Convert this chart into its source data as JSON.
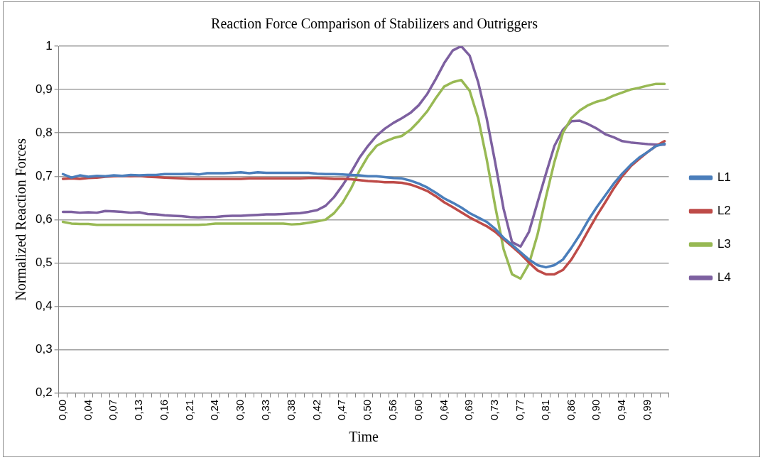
{
  "chart_data": {
    "type": "line",
    "title": "Reaction Force Comparison of Stabilizers and Outriggers",
    "xlabel": "Time",
    "ylabel": "Normalized Reaction Forces",
    "categories": [
      "0,00",
      null,
      null,
      "0,04",
      null,
      null,
      "0,07",
      null,
      null,
      "0,13",
      null,
      null,
      "0,16",
      null,
      null,
      "0,21",
      null,
      null,
      "0,24",
      null,
      null,
      "0,30",
      null,
      null,
      "0,33",
      null,
      null,
      "0,38",
      null,
      null,
      "0,42",
      null,
      null,
      "0,47",
      null,
      null,
      "0,50",
      null,
      null,
      "0,56",
      null,
      null,
      "0,60",
      null,
      null,
      "0,64",
      null,
      null,
      "0,69",
      null,
      null,
      "0,73",
      null,
      null,
      "0,77",
      null,
      null,
      "0,81",
      null,
      null,
      "0,86",
      null,
      null,
      "0,90",
      null,
      null,
      "0,94",
      null,
      null,
      "0,99",
      null,
      null
    ],
    "series": [
      {
        "name": "L1",
        "color": "#4a7ebb",
        "values": [
          0.705,
          0.697,
          0.702,
          0.699,
          0.701,
          0.7,
          0.702,
          0.701,
          0.703,
          0.702,
          0.703,
          0.703,
          0.705,
          0.705,
          0.705,
          0.706,
          0.704,
          0.707,
          0.707,
          0.707,
          0.708,
          0.709,
          0.707,
          0.709,
          0.708,
          0.708,
          0.708,
          0.708,
          0.708,
          0.708,
          0.706,
          0.705,
          0.705,
          0.704,
          0.703,
          0.702,
          0.7,
          0.7,
          0.698,
          0.696,
          0.695,
          0.69,
          0.683,
          0.674,
          0.662,
          0.649,
          0.639,
          0.628,
          0.615,
          0.605,
          0.595,
          0.579,
          0.558,
          0.542,
          0.525,
          0.508,
          0.495,
          0.49,
          0.495,
          0.508,
          0.535,
          0.565,
          0.599,
          0.629,
          0.656,
          0.683,
          0.706,
          0.726,
          0.743,
          0.756,
          0.77,
          0.775
        ]
      },
      {
        "name": "L2",
        "color": "#be4b48",
        "values": [
          0.694,
          0.695,
          0.694,
          0.696,
          0.697,
          0.699,
          0.7,
          0.701,
          0.7,
          0.701,
          0.699,
          0.698,
          0.697,
          0.696,
          0.695,
          0.694,
          0.694,
          0.694,
          0.694,
          0.694,
          0.694,
          0.694,
          0.695,
          0.695,
          0.695,
          0.695,
          0.695,
          0.695,
          0.695,
          0.696,
          0.696,
          0.695,
          0.694,
          0.694,
          0.693,
          0.691,
          0.689,
          0.688,
          0.686,
          0.686,
          0.685,
          0.681,
          0.674,
          0.666,
          0.654,
          0.64,
          0.629,
          0.617,
          0.605,
          0.595,
          0.585,
          0.572,
          0.555,
          0.538,
          0.521,
          0.501,
          0.483,
          0.474,
          0.474,
          0.484,
          0.508,
          0.54,
          0.575,
          0.609,
          0.64,
          0.672,
          0.7,
          0.723,
          0.74,
          0.756,
          0.77,
          0.781
        ]
      },
      {
        "name": "L3",
        "color": "#98b954",
        "values": [
          0.595,
          0.591,
          0.59,
          0.59,
          0.588,
          0.588,
          0.588,
          0.588,
          0.588,
          0.588,
          0.588,
          0.588,
          0.588,
          0.588,
          0.588,
          0.588,
          0.588,
          0.589,
          0.591,
          0.591,
          0.591,
          0.591,
          0.591,
          0.591,
          0.591,
          0.591,
          0.591,
          0.589,
          0.59,
          0.593,
          0.596,
          0.6,
          0.615,
          0.639,
          0.672,
          0.713,
          0.746,
          0.77,
          0.78,
          0.788,
          0.793,
          0.807,
          0.827,
          0.85,
          0.88,
          0.907,
          0.917,
          0.922,
          0.897,
          0.834,
          0.74,
          0.632,
          0.532,
          0.474,
          0.464,
          0.498,
          0.565,
          0.652,
          0.733,
          0.8,
          0.834,
          0.852,
          0.864,
          0.872,
          0.877,
          0.886,
          0.893,
          0.9,
          0.904,
          0.909,
          0.913,
          0.913
        ]
      },
      {
        "name": "L4",
        "color": "#7d60a0",
        "values": [
          0.618,
          0.618,
          0.616,
          0.617,
          0.616,
          0.62,
          0.619,
          0.618,
          0.616,
          0.617,
          0.613,
          0.612,
          0.61,
          0.609,
          0.608,
          0.606,
          0.605,
          0.606,
          0.606,
          0.608,
          0.609,
          0.609,
          0.61,
          0.611,
          0.612,
          0.612,
          0.613,
          0.614,
          0.615,
          0.618,
          0.622,
          0.632,
          0.652,
          0.679,
          0.709,
          0.743,
          0.77,
          0.793,
          0.81,
          0.823,
          0.834,
          0.846,
          0.864,
          0.89,
          0.924,
          0.961,
          0.99,
          1.0,
          0.978,
          0.917,
          0.834,
          0.733,
          0.625,
          0.548,
          0.538,
          0.572,
          0.639,
          0.706,
          0.77,
          0.807,
          0.827,
          0.828,
          0.82,
          0.81,
          0.797,
          0.79,
          0.781,
          0.778,
          0.776,
          0.774,
          0.773,
          0.773
        ]
      }
    ],
    "ylim": [
      0.2,
      1
    ],
    "yticks": [
      {
        "value": 0.2,
        "label": "0,2"
      },
      {
        "value": 0.3,
        "label": "0,3"
      },
      {
        "value": 0.4,
        "label": "0,4"
      },
      {
        "value": 0.5,
        "label": "0,5"
      },
      {
        "value": 0.6,
        "label": "0,6"
      },
      {
        "value": 0.7,
        "label": "0,7"
      },
      {
        "value": 0.8,
        "label": "0,8"
      },
      {
        "value": 0.9,
        "label": "0,9"
      },
      1
    ],
    "grid": "y",
    "legend": "right",
    "marker": "none",
    "line_style": "solid"
  }
}
